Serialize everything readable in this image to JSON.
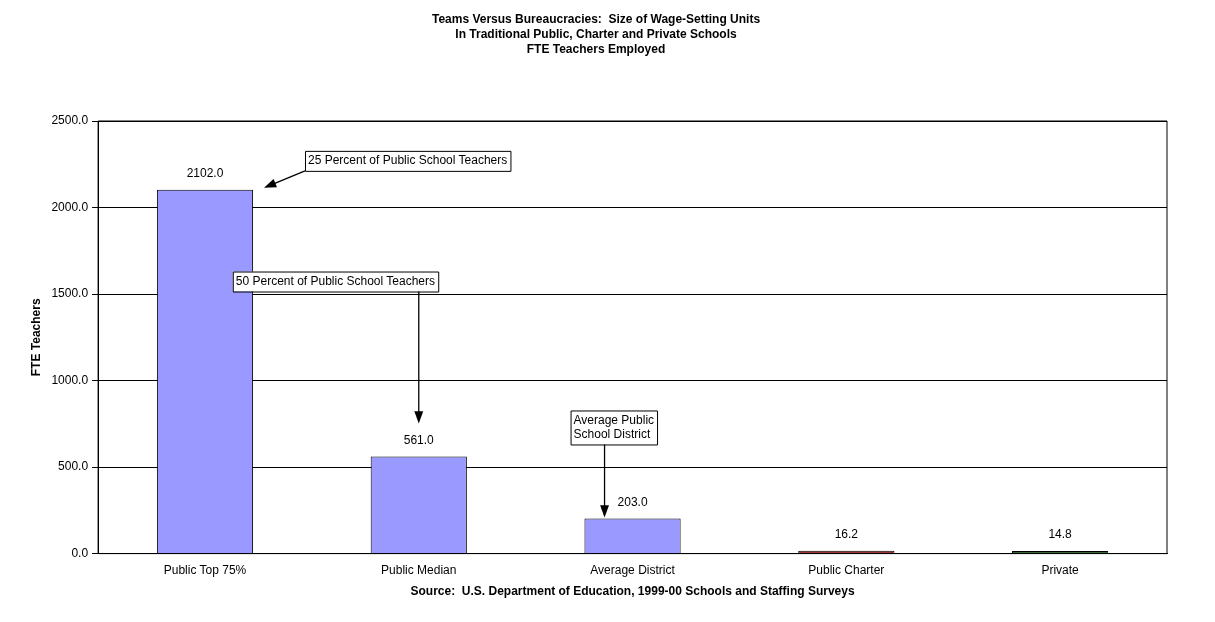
{
  "chart_data": {
    "type": "bar",
    "title": "Teams Versus Bureaucracies:  Size of Wage-Setting Units\nIn Traditional Public, Charter and Private Schools\nFTE Teachers Employed",
    "ylabel": "FTE Teachers",
    "categories": [
      "Public Top 75%",
      "Public Median",
      "Average District",
      "Public Charter",
      "Private"
    ],
    "values": [
      2102,
      561,
      203,
      16.2,
      14.8
    ],
    "value_labels": [
      "2102.0",
      "561.0",
      "203.0",
      "16.2",
      "14.8"
    ],
    "colors": [
      "#9999ff",
      "#9999ff",
      "#9999ff",
      "#993333",
      "#336633"
    ],
    "ylim": [
      0,
      2500
    ],
    "yticks": [
      {
        "value": 0,
        "label": "0.0"
      },
      {
        "value": 500,
        "label": "500.0"
      },
      {
        "value": 1000,
        "label": "1000.0"
      },
      {
        "value": 1500,
        "label": "1500.0"
      },
      {
        "value": 2000,
        "label": "2000.0"
      },
      {
        "value": 2500,
        "label": "2500.0"
      }
    ],
    "grid": "y",
    "legend": false,
    "annotations": [
      "25 Percent of Public School Teachers",
      "50 Percent of Public School Teachers",
      "Average Public School District",
      "Source:  U.S. Department of Education, 1999-00 Schools and Staffing Surveys"
    ]
  }
}
